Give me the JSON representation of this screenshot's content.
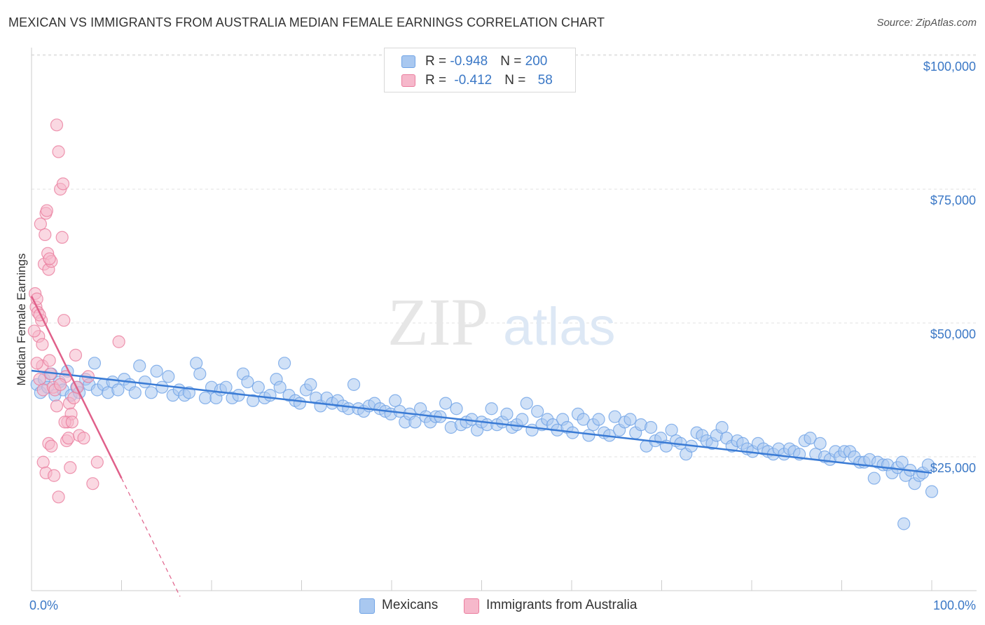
{
  "title": "MEXICAN VS IMMIGRANTS FROM AUSTRALIA MEDIAN FEMALE EARNINGS CORRELATION CHART",
  "source": "Source: ZipAtlas.com",
  "watermark": {
    "zip": "ZIP",
    "atlas": "atlas"
  },
  "legend_top": {
    "rows": [
      {
        "r_label": "R = ",
        "r_value": "-0.948",
        "n_label": "N = ",
        "n_value": "200",
        "color": "#a9c8f0"
      },
      {
        "r_label": "R = ",
        "r_value": "-0.412",
        "n_label": "N = ",
        "n_value": "58",
        "color": "#f6b8cb"
      }
    ]
  },
  "legend_bottom": [
    {
      "label": "Mexicans",
      "color": "#a9c8f0"
    },
    {
      "label": "Immigrants from Australia",
      "color": "#f6b8cb"
    }
  ],
  "chart_data": {
    "type": "scatter",
    "title": "MEXICAN VS IMMIGRANTS FROM AUSTRALIA MEDIAN FEMALE EARNINGS CORRELATION CHART",
    "xlabel": "",
    "ylabel": "Median Female Earnings",
    "xlim": [
      0,
      100
    ],
    "ylim": [
      0,
      105000
    ],
    "x_tick_labels": [
      "0.0%",
      "100.0%"
    ],
    "y_ticks": [
      {
        "value": 25000,
        "label": "$25,000"
      },
      {
        "value": 50000,
        "label": "$50,000"
      },
      {
        "value": 75000,
        "label": "$75,000"
      },
      {
        "value": 100000,
        "label": "$100,000"
      }
    ],
    "grid": true,
    "legend_position": "top-center",
    "series": [
      {
        "name": "Mexicans",
        "color": "#6fa3e6",
        "fill": "#a9c8f0",
        "r": -0.948,
        "n": 200,
        "trend": {
          "x": [
            0,
            100
          ],
          "y": [
            41100,
            22000
          ],
          "dashed_from": null
        },
        "points": [
          [
            0.6,
            38500
          ],
          [
            1.0,
            37000
          ],
          [
            1.4,
            39500
          ],
          [
            1.8,
            38000
          ],
          [
            2.2,
            40500
          ],
          [
            2.6,
            36500
          ],
          [
            3.1,
            39000
          ],
          [
            3.5,
            37500
          ],
          [
            4.0,
            41000
          ],
          [
            4.4,
            36500
          ],
          [
            5.0,
            38000
          ],
          [
            5.3,
            37000
          ],
          [
            6.0,
            39500
          ],
          [
            6.4,
            38500
          ],
          [
            7.0,
            42500
          ],
          [
            7.3,
            37500
          ],
          [
            8.0,
            38500
          ],
          [
            8.5,
            37000
          ],
          [
            9.0,
            39000
          ],
          [
            9.6,
            37500
          ],
          [
            10.3,
            39500
          ],
          [
            10.9,
            38500
          ],
          [
            11.5,
            37000
          ],
          [
            12.0,
            42000
          ],
          [
            12.6,
            39000
          ],
          [
            13.3,
            37000
          ],
          [
            13.9,
            41000
          ],
          [
            14.5,
            38000
          ],
          [
            15.2,
            40000
          ],
          [
            15.7,
            36500
          ],
          [
            16.4,
            37500
          ],
          [
            17.0,
            36500
          ],
          [
            17.5,
            37000
          ],
          [
            18.3,
            42500
          ],
          [
            18.7,
            40500
          ],
          [
            19.3,
            36000
          ],
          [
            20.0,
            38000
          ],
          [
            20.5,
            36000
          ],
          [
            21.0,
            37500
          ],
          [
            21.6,
            38000
          ],
          [
            22.3,
            36000
          ],
          [
            23.0,
            36500
          ],
          [
            23.5,
            40500
          ],
          [
            24.0,
            39000
          ],
          [
            24.6,
            35500
          ],
          [
            25.2,
            38000
          ],
          [
            25.9,
            36000
          ],
          [
            26.5,
            36500
          ],
          [
            27.2,
            39500
          ],
          [
            27.6,
            38000
          ],
          [
            28.1,
            42500
          ],
          [
            28.6,
            36500
          ],
          [
            29.3,
            35500
          ],
          [
            29.8,
            35000
          ],
          [
            30.5,
            37500
          ],
          [
            31.0,
            38500
          ],
          [
            31.6,
            36000
          ],
          [
            32.1,
            34500
          ],
          [
            32.8,
            36000
          ],
          [
            33.4,
            35000
          ],
          [
            34.0,
            35500
          ],
          [
            34.6,
            34500
          ],
          [
            35.2,
            34000
          ],
          [
            35.8,
            38500
          ],
          [
            36.3,
            34000
          ],
          [
            36.9,
            33500
          ],
          [
            37.5,
            34500
          ],
          [
            38.1,
            35000
          ],
          [
            38.7,
            34000
          ],
          [
            39.3,
            33500
          ],
          [
            39.9,
            33000
          ],
          [
            40.4,
            35500
          ],
          [
            40.9,
            33500
          ],
          [
            41.5,
            31500
          ],
          [
            42.0,
            33000
          ],
          [
            42.6,
            31500
          ],
          [
            43.2,
            34000
          ],
          [
            43.8,
            32500
          ],
          [
            44.3,
            31500
          ],
          [
            44.9,
            32500
          ],
          [
            45.4,
            32500
          ],
          [
            46.0,
            35000
          ],
          [
            46.6,
            30500
          ],
          [
            47.2,
            34000
          ],
          [
            47.7,
            31000
          ],
          [
            48.3,
            31500
          ],
          [
            48.9,
            32000
          ],
          [
            49.5,
            30000
          ],
          [
            50.0,
            31500
          ],
          [
            50.6,
            31000
          ],
          [
            51.1,
            34000
          ],
          [
            51.7,
            31000
          ],
          [
            52.3,
            31500
          ],
          [
            52.8,
            33000
          ],
          [
            53.4,
            30500
          ],
          [
            53.9,
            31000
          ],
          [
            54.5,
            32000
          ],
          [
            55.0,
            35000
          ],
          [
            55.6,
            30000
          ],
          [
            56.2,
            33500
          ],
          [
            56.7,
            31000
          ],
          [
            57.3,
            32000
          ],
          [
            57.9,
            31000
          ],
          [
            58.4,
            30000
          ],
          [
            59.0,
            32000
          ],
          [
            59.5,
            30500
          ],
          [
            60.1,
            29500
          ],
          [
            60.7,
            33000
          ],
          [
            61.3,
            32000
          ],
          [
            61.9,
            29000
          ],
          [
            62.4,
            31000
          ],
          [
            63.0,
            32000
          ],
          [
            63.6,
            29500
          ],
          [
            64.2,
            29000
          ],
          [
            64.8,
            32500
          ],
          [
            65.3,
            30000
          ],
          [
            65.9,
            31500
          ],
          [
            66.5,
            32000
          ],
          [
            67.1,
            29500
          ],
          [
            67.7,
            31000
          ],
          [
            68.3,
            27000
          ],
          [
            68.8,
            30500
          ],
          [
            69.3,
            28000
          ],
          [
            69.9,
            28500
          ],
          [
            70.5,
            27000
          ],
          [
            71.1,
            30000
          ],
          [
            71.6,
            28000
          ],
          [
            72.1,
            27500
          ],
          [
            72.7,
            25500
          ],
          [
            73.3,
            27000
          ],
          [
            73.9,
            29500
          ],
          [
            74.5,
            29000
          ],
          [
            75.0,
            28000
          ],
          [
            75.6,
            27500
          ],
          [
            76.1,
            29000
          ],
          [
            76.7,
            30500
          ],
          [
            77.2,
            28500
          ],
          [
            77.8,
            27000
          ],
          [
            78.4,
            28000
          ],
          [
            79.0,
            27500
          ],
          [
            79.5,
            26500
          ],
          [
            80.1,
            26000
          ],
          [
            80.7,
            27500
          ],
          [
            81.3,
            26500
          ],
          [
            81.8,
            26000
          ],
          [
            82.4,
            25500
          ],
          [
            83.0,
            26500
          ],
          [
            83.6,
            25500
          ],
          [
            84.2,
            26500
          ],
          [
            84.7,
            26000
          ],
          [
            85.3,
            25500
          ],
          [
            85.9,
            28000
          ],
          [
            86.5,
            28500
          ],
          [
            87.1,
            25500
          ],
          [
            87.6,
            27500
          ],
          [
            88.1,
            25000
          ],
          [
            88.7,
            24500
          ],
          [
            89.3,
            26000
          ],
          [
            89.8,
            25000
          ],
          [
            90.3,
            26000
          ],
          [
            90.9,
            26000
          ],
          [
            91.4,
            25000
          ],
          [
            92.0,
            24000
          ],
          [
            92.5,
            24000
          ],
          [
            93.1,
            24500
          ],
          [
            93.6,
            21000
          ],
          [
            94.0,
            24000
          ],
          [
            94.6,
            23500
          ],
          [
            95.1,
            23500
          ],
          [
            95.6,
            22000
          ],
          [
            96.2,
            23000
          ],
          [
            96.7,
            24000
          ],
          [
            97.1,
            21500
          ],
          [
            97.6,
            22500
          ],
          [
            98.1,
            20000
          ],
          [
            98.6,
            21500
          ],
          [
            99.0,
            22000
          ],
          [
            99.6,
            23500
          ],
          [
            100.0,
            18500
          ],
          [
            96.9,
            12500
          ]
        ]
      },
      {
        "name": "Immigrants from Australia",
        "color": "#ea7d9e",
        "fill": "#f6b8cb",
        "r": -0.412,
        "n": 58,
        "trend": {
          "x": [
            0,
            10
          ],
          "y": [
            55000,
            21000
          ],
          "dashed_to": 16.5
        },
        "points": [
          [
            0.4,
            55500
          ],
          [
            0.5,
            53000
          ],
          [
            0.6,
            54500
          ],
          [
            0.7,
            52000
          ],
          [
            0.8,
            47500
          ],
          [
            0.9,
            39500
          ],
          [
            1.0,
            68500
          ],
          [
            1.1,
            50500
          ],
          [
            1.2,
            42000
          ],
          [
            1.3,
            37500
          ],
          [
            1.4,
            61000
          ],
          [
            1.5,
            66500
          ],
          [
            1.6,
            70500
          ],
          [
            1.7,
            71000
          ],
          [
            1.8,
            63000
          ],
          [
            1.9,
            60000
          ],
          [
            2.0,
            43000
          ],
          [
            2.1,
            40500
          ],
          [
            2.2,
            61500
          ],
          [
            2.4,
            38000
          ],
          [
            2.6,
            37500
          ],
          [
            2.8,
            87000
          ],
          [
            3.0,
            82000
          ],
          [
            3.2,
            75000
          ],
          [
            3.4,
            66000
          ],
          [
            3.6,
            50500
          ],
          [
            3.8,
            40000
          ],
          [
            4.0,
            31500
          ],
          [
            4.2,
            35000
          ],
          [
            4.4,
            33000
          ],
          [
            1.3,
            24000
          ],
          [
            1.6,
            22000
          ],
          [
            1.9,
            27500
          ],
          [
            2.2,
            27000
          ],
          [
            2.5,
            21500
          ],
          [
            2.8,
            34500
          ],
          [
            3.0,
            17500
          ],
          [
            3.2,
            38500
          ],
          [
            3.5,
            76000
          ],
          [
            3.7,
            31500
          ],
          [
            3.9,
            28000
          ],
          [
            4.1,
            28500
          ],
          [
            4.3,
            23000
          ],
          [
            4.5,
            31500
          ],
          [
            4.7,
            36000
          ],
          [
            4.9,
            44000
          ],
          [
            5.1,
            38000
          ],
          [
            5.3,
            29000
          ],
          [
            5.8,
            28500
          ],
          [
            6.3,
            40000
          ],
          [
            6.8,
            20000
          ],
          [
            7.3,
            24000
          ],
          [
            9.7,
            46500
          ],
          [
            0.3,
            48500
          ],
          [
            0.6,
            42500
          ],
          [
            0.9,
            51500
          ],
          [
            1.2,
            46000
          ],
          [
            2.0,
            62000
          ]
        ]
      }
    ]
  }
}
